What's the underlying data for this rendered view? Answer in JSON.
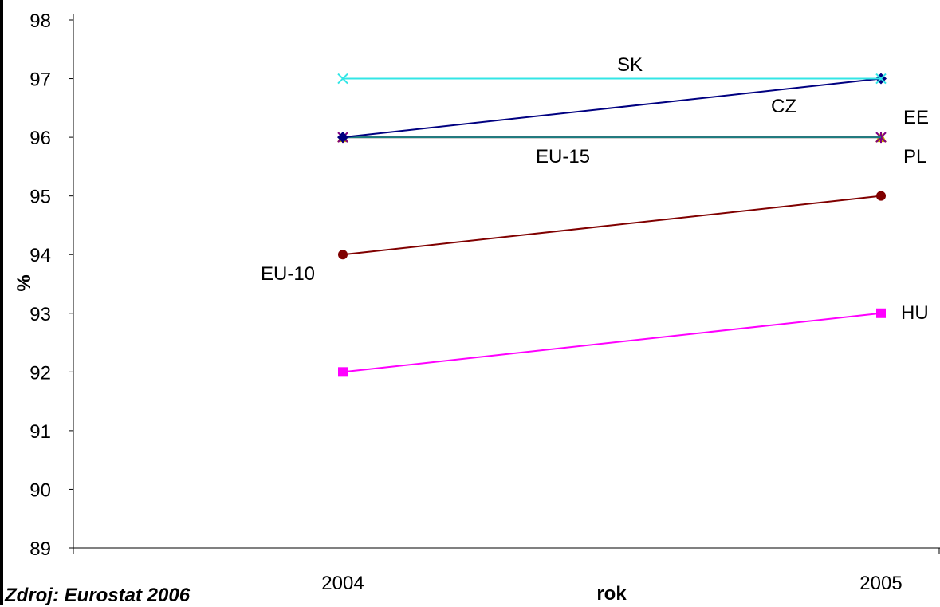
{
  "chart_data": {
    "type": "line",
    "categories": [
      "2004",
      "2005"
    ],
    "xlabel": "rok",
    "ylabel": "%",
    "ylim": [
      89,
      98
    ],
    "y_ticks": [
      89,
      90,
      91,
      92,
      93,
      94,
      95,
      96,
      97,
      98
    ],
    "grid": false,
    "legend": "none (series labeled inline)",
    "series": [
      {
        "name": "SK",
        "values": [
          97,
          97
        ],
        "color": "#33e6e6",
        "marker": "x"
      },
      {
        "name": "CZ",
        "values": [
          96,
          97
        ],
        "color": "#000080",
        "marker": "diamond"
      },
      {
        "name": "EE",
        "values": [
          96,
          96
        ],
        "color": "#800080",
        "marker": "star"
      },
      {
        "name": "PL",
        "values": [
          96,
          96
        ],
        "color": "#c8a000",
        "marker": "triangle"
      },
      {
        "name": "EU-15",
        "values": [
          96,
          96
        ],
        "color": "#1a8080",
        "marker": "none"
      },
      {
        "name": "EU-10",
        "values": [
          94,
          95
        ],
        "color": "#800000",
        "marker": "circle"
      },
      {
        "name": "HU",
        "values": [
          92,
          93
        ],
        "color": "#ff00ff",
        "marker": "square"
      }
    ]
  },
  "source": "Zdroj: Eurostat 2006"
}
